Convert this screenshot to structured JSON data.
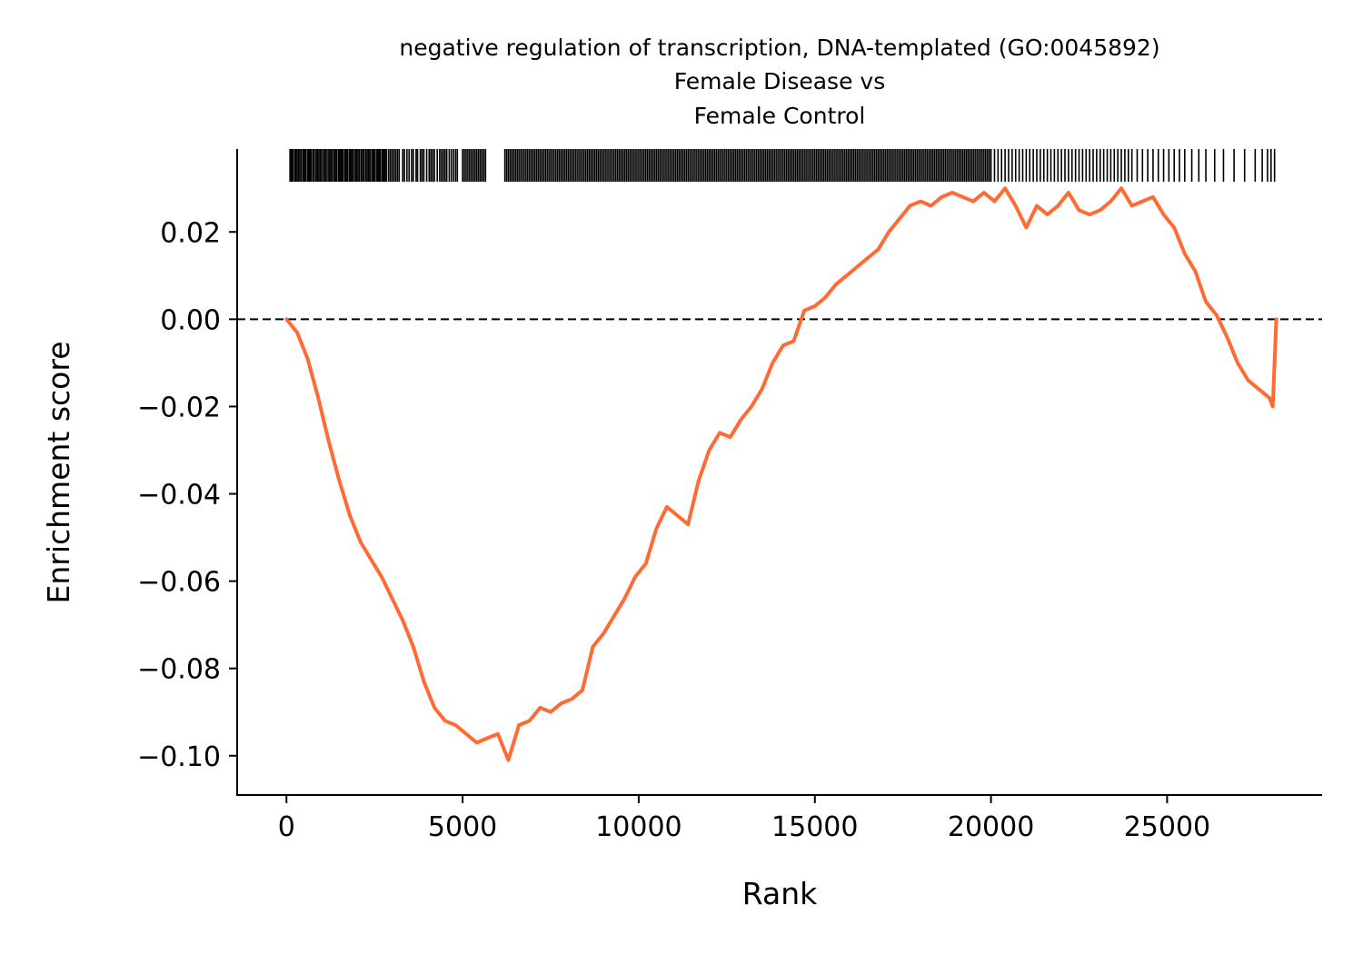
{
  "chart_data": {
    "type": "line",
    "title": [
      "negative regulation of transcription, DNA-templated (GO:0045892)",
      "Female Disease vs",
      "Female Control"
    ],
    "xlabel": "Rank",
    "ylabel": "Enrichment score",
    "xlim": [
      -1400,
      29400
    ],
    "ylim": [
      -0.109,
      0.039
    ],
    "xticks": [
      0,
      5000,
      10000,
      15000,
      20000,
      25000
    ],
    "xtick_labels": [
      "0",
      "5000",
      "10000",
      "15000",
      "20000",
      "25000"
    ],
    "yticks": [
      0.02,
      0.0,
      -0.02,
      -0.04,
      -0.06,
      -0.08,
      -0.1
    ],
    "ytick_labels": [
      "0.02",
      "0.00",
      "−0.02",
      "−0.04",
      "−0.06",
      "−0.08",
      "−0.10"
    ],
    "reference_line": {
      "y": 0.0,
      "style": "dashed",
      "color": "#000000"
    },
    "line_color": "#ff6b35",
    "hit_color": "#000000",
    "grid": false,
    "series": [
      {
        "x": [
          0,
          300,
          600,
          900,
          1200,
          1500,
          1800,
          2100,
          2400,
          2700,
          3000,
          3300,
          3600,
          3900,
          4200,
          4500,
          4800,
          5100,
          5400,
          5700,
          6000,
          6300,
          6600,
          6900,
          7200,
          7500,
          7800,
          8100,
          8400,
          8700,
          9000,
          9300,
          9600,
          9900,
          10200,
          10500,
          10800,
          11100,
          11400,
          11700,
          12000,
          12300,
          12600,
          12900,
          13200,
          13500,
          13800,
          14100,
          14400,
          14700,
          15000,
          15300,
          15600,
          15900,
          16200,
          16500,
          16800,
          17100,
          17400,
          17700,
          18000,
          18300,
          18600,
          18900,
          19200,
          19500,
          19800,
          20100,
          20400,
          20700,
          21000,
          21300,
          21600,
          21900,
          22200,
          22500,
          22800,
          23100,
          23400,
          23700,
          24000,
          24300,
          24600,
          24900,
          25200,
          25500,
          25800,
          26100,
          26400,
          26700,
          27000,
          27300,
          27600,
          27900,
          28000,
          28100
        ],
        "y": [
          0.0,
          -0.003,
          -0.009,
          -0.018,
          -0.028,
          -0.037,
          -0.045,
          -0.051,
          -0.055,
          -0.059,
          -0.064,
          -0.069,
          -0.075,
          -0.083,
          -0.089,
          -0.092,
          -0.093,
          -0.095,
          -0.097,
          -0.096,
          -0.095,
          -0.101,
          -0.093,
          -0.092,
          -0.089,
          -0.09,
          -0.088,
          -0.087,
          -0.085,
          -0.075,
          -0.072,
          -0.068,
          -0.064,
          -0.059,
          -0.056,
          -0.048,
          -0.043,
          -0.045,
          -0.047,
          -0.037,
          -0.03,
          -0.026,
          -0.027,
          -0.023,
          -0.02,
          -0.016,
          -0.01,
          -0.006,
          -0.005,
          0.002,
          0.003,
          0.005,
          0.008,
          0.01,
          0.012,
          0.014,
          0.016,
          0.02,
          0.023,
          0.026,
          0.027,
          0.026,
          0.028,
          0.029,
          0.028,
          0.027,
          0.029,
          0.027,
          0.03,
          0.026,
          0.021,
          0.026,
          0.024,
          0.026,
          0.029,
          0.025,
          0.024,
          0.025,
          0.027,
          0.03,
          0.026,
          0.027,
          0.028,
          0.024,
          0.021,
          0.015,
          0.011,
          0.004,
          0.001,
          -0.004,
          -0.01,
          -0.014,
          -0.016,
          -0.018,
          -0.02,
          0.0
        ]
      }
    ],
    "hits": [
      100,
      140,
      180,
      230,
      260,
      300,
      340,
      380,
      420,
      470,
      500,
      540,
      590,
      630,
      670,
      700,
      750,
      790,
      840,
      880,
      920,
      960,
      1000,
      1050,
      1090,
      1130,
      1180,
      1220,
      1260,
      1300,
      1350,
      1390,
      1430,
      1480,
      1520,
      1560,
      1600,
      1650,
      1690,
      1730,
      1780,
      1820,
      1860,
      1900,
      1950,
      1990,
      2030,
      2070,
      2120,
      2160,
      2200,
      2250,
      2290,
      2330,
      2370,
      2420,
      2460,
      2500,
      2550,
      2590,
      2630,
      2670,
      2720,
      2760,
      2800,
      2840,
      2900,
      2950,
      3000,
      3050,
      3100,
      3150,
      3200,
      3300,
      3350,
      3420,
      3480,
      3550,
      3600,
      3680,
      3720,
      3800,
      3850,
      3900,
      3980,
      4050,
      4100,
      4150,
      4200,
      4280,
      4350,
      4400,
      4450,
      4500,
      4550,
      4620,
      4680,
      4740,
      4800,
      4850,
      5000,
      5050,
      5100,
      5150,
      5200,
      5250,
      5300,
      5350,
      5400,
      5450,
      5500,
      5550,
      5600,
      5650,
      6200,
      6250,
      6300,
      6350,
      6400,
      6450,
      6500,
      6550,
      6600,
      6650,
      6700,
      6750,
      6800,
      6850,
      6900,
      6950,
      7000,
      7050,
      7100,
      7150,
      7200,
      7250,
      7300,
      7350,
      7400,
      7450,
      7500,
      7550,
      7600,
      7650,
      7700,
      7750,
      7800,
      7850,
      7900,
      7950,
      8000,
      8050,
      8100,
      8150,
      8200,
      8250,
      8300,
      8350,
      8400,
      8450,
      8500,
      8550,
      8600,
      8650,
      8700,
      8750,
      8800,
      8850,
      8900,
      8950,
      9000,
      9050,
      9100,
      9150,
      9200,
      9250,
      9300,
      9350,
      9400,
      9450,
      9500,
      9550,
      9600,
      9650,
      9700,
      9750,
      9800,
      9850,
      9900,
      9950,
      10000,
      10050,
      10100,
      10150,
      10200,
      10250,
      10300,
      10350,
      10400,
      10450,
      10500,
      10550,
      10600,
      10650,
      10700,
      10750,
      10800,
      10850,
      10900,
      10950,
      11000,
      11050,
      11100,
      11150,
      11200,
      11250,
      11300,
      11350,
      11400,
      11450,
      11500,
      11550,
      11600,
      11650,
      11700,
      11750,
      11800,
      11850,
      11900,
      11950,
      12000,
      12050,
      12100,
      12150,
      12200,
      12250,
      12300,
      12350,
      12400,
      12450,
      12500,
      12550,
      12600,
      12650,
      12700,
      12750,
      12800,
      12850,
      12900,
      12950,
      13000,
      13050,
      13100,
      13150,
      13200,
      13250,
      13300,
      13350,
      13400,
      13450,
      13500,
      13550,
      13600,
      13650,
      13700,
      13750,
      13800,
      13850,
      13900,
      13950,
      14000,
      14050,
      14100,
      14150,
      14200,
      14250,
      14300,
      14350,
      14400,
      14450,
      14500,
      14550,
      14600,
      14650,
      14700,
      14750,
      14800,
      14850,
      14900,
      14950,
      15000,
      15050,
      15100,
      15150,
      15200,
      15250,
      15300,
      15350,
      15400,
      15450,
      15500,
      15550,
      15600,
      15650,
      15700,
      15750,
      15800,
      15850,
      15900,
      15950,
      16000,
      16050,
      16100,
      16150,
      16200,
      16250,
      16300,
      16350,
      16400,
      16450,
      16500,
      16550,
      16600,
      16650,
      16700,
      16750,
      16800,
      16850,
      16900,
      16950,
      17000,
      17050,
      17100,
      17150,
      17200,
      17250,
      17300,
      17350,
      17400,
      17450,
      17500,
      17550,
      17600,
      17650,
      17700,
      17750,
      17800,
      17850,
      17900,
      17950,
      18000,
      18050,
      18100,
      18150,
      18200,
      18250,
      18300,
      18350,
      18400,
      18450,
      18500,
      18550,
      18600,
      18650,
      18700,
      18750,
      18800,
      18850,
      18900,
      18950,
      19000,
      19050,
      19100,
      19150,
      19200,
      19250,
      19300,
      19350,
      19400,
      19450,
      19500,
      19550,
      19600,
      19650,
      19700,
      19750,
      19800,
      19850,
      19900,
      19950,
      20000,
      20100,
      20200,
      20300,
      20400,
      20500,
      20600,
      20700,
      20800,
      20900,
      21000,
      21100,
      21200,
      21300,
      21400,
      21500,
      21600,
      21700,
      21800,
      21900,
      22000,
      22100,
      22200,
      22300,
      22400,
      22500,
      22600,
      22700,
      22800,
      22900,
      23000,
      23100,
      23200,
      23300,
      23400,
      23500,
      23600,
      23700,
      23800,
      23900,
      24000,
      24150,
      24300,
      24450,
      24600,
      24750,
      24900,
      25050,
      25200,
      25350,
      25500,
      25700,
      25900,
      26100,
      26350,
      26600,
      26900,
      27200,
      27500,
      27700,
      27850,
      27950,
      28050
    ]
  }
}
